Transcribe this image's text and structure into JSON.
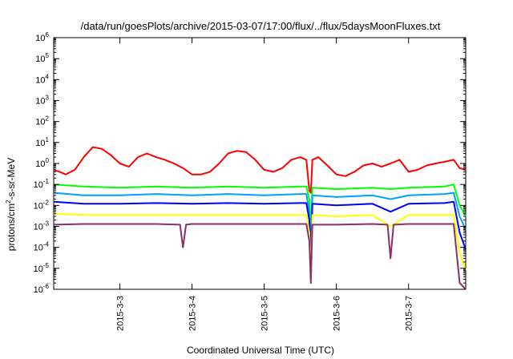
{
  "chart_data": {
    "type": "line",
    "title": "/data/run/goesPlots/archive/2015-03-07/17:00/flux/../flux/5daysMoonFluxes.txt",
    "xlabel": "Coordinated Universal Time (UTC)",
    "ylabel": {
      "base": "protons/cm",
      "sup": "2",
      "rest": "-s-sr-MeV"
    },
    "y_scale": "log",
    "ylim": [
      1e-06,
      1000000.0
    ],
    "xlim": [
      "2015-03-02T02:00",
      "2015-03-07T19:00"
    ],
    "grid": false,
    "legend": "none",
    "y_ticks": [
      {
        "value": 1e-06,
        "base": "10",
        "exp": "-6"
      },
      {
        "value": 1e-05,
        "base": "10",
        "exp": "-5"
      },
      {
        "value": 0.0001,
        "base": "10",
        "exp": "-4"
      },
      {
        "value": 0.001,
        "base": "10",
        "exp": "-3"
      },
      {
        "value": 0.01,
        "base": "10",
        "exp": "-2"
      },
      {
        "value": 0.1,
        "base": "10",
        "exp": "-1"
      },
      {
        "value": 1.0,
        "base": "10",
        "exp": "0"
      },
      {
        "value": 10.0,
        "base": "10",
        "exp": "1"
      },
      {
        "value": 100.0,
        "base": "10",
        "exp": "2"
      },
      {
        "value": 1000.0,
        "base": "10",
        "exp": "3"
      },
      {
        "value": 10000.0,
        "base": "10",
        "exp": "4"
      },
      {
        "value": 100000.0,
        "base": "10",
        "exp": "5"
      },
      {
        "value": 1000000.0,
        "base": "10",
        "exp": "6"
      }
    ],
    "x_ticks": [
      {
        "value": "2015-03-03T00:00",
        "label": "2015-3-3"
      },
      {
        "value": "2015-03-04T00:00",
        "label": "2015-3-4"
      },
      {
        "value": "2015-03-05T00:00",
        "label": "2015-3-5"
      },
      {
        "value": "2015-03-06T00:00",
        "label": "2015-3-6"
      },
      {
        "value": "2015-03-07T00:00",
        "label": "2015-3-7"
      }
    ],
    "series": [
      {
        "color": "#ff0000",
        "x": [
          "2015-03-02T02:00",
          "2015-03-02T04:00",
          "2015-03-02T06:00",
          "2015-03-02T09:00",
          "2015-03-02T12:00",
          "2015-03-02T15:00",
          "2015-03-02T18:00",
          "2015-03-02T21:00",
          "2015-03-03T00:00",
          "2015-03-03T03:00",
          "2015-03-03T06:00",
          "2015-03-03T09:00",
          "2015-03-03T12:00",
          "2015-03-03T15:00",
          "2015-03-03T18:00",
          "2015-03-03T21:00",
          "2015-03-04T00:00",
          "2015-03-04T03:00",
          "2015-03-04T06:00",
          "2015-03-04T09:00",
          "2015-03-04T12:00",
          "2015-03-04T15:00",
          "2015-03-04T18:00",
          "2015-03-04T21:00",
          "2015-03-05T00:00",
          "2015-03-05T03:00",
          "2015-03-05T06:00",
          "2015-03-05T09:00",
          "2015-03-05T12:00",
          "2015-03-05T14:00",
          "2015-03-05T15:00",
          "2015-03-05T15:30",
          "2015-03-05T16:00",
          "2015-03-05T18:00",
          "2015-03-05T21:00",
          "2015-03-06T00:00",
          "2015-03-06T03:00",
          "2015-03-06T06:00",
          "2015-03-06T09:00",
          "2015-03-06T12:00",
          "2015-03-06T15:00",
          "2015-03-06T18:00",
          "2015-03-06T21:00",
          "2015-03-07T00:00",
          "2015-03-07T03:00",
          "2015-03-07T06:00",
          "2015-03-07T09:00",
          "2015-03-07T12:00",
          "2015-03-07T15:00",
          "2015-03-07T17:00",
          "2015-03-07T19:00"
        ],
        "values": [
          0.5,
          0.4,
          0.3,
          0.5,
          2.0,
          6.0,
          5.0,
          2.5,
          1.0,
          0.7,
          2.0,
          3.0,
          2.0,
          1.5,
          1.0,
          0.6,
          0.3,
          0.3,
          0.4,
          1.0,
          3.0,
          4.0,
          3.5,
          1.5,
          0.5,
          0.4,
          0.6,
          1.5,
          2.0,
          1.5,
          0.05,
          0.04,
          1.5,
          2.0,
          0.8,
          0.3,
          0.25,
          0.4,
          0.8,
          1.0,
          0.7,
          1.0,
          1.5,
          0.4,
          0.5,
          0.8,
          1.0,
          1.2,
          1.5,
          0.6,
          0.5
        ]
      },
      {
        "color": "#00ff00",
        "x": [
          "2015-03-02T02:00",
          "2015-03-02T12:00",
          "2015-03-03T00:00",
          "2015-03-03T12:00",
          "2015-03-04T00:00",
          "2015-03-04T12:00",
          "2015-03-05T00:00",
          "2015-03-05T12:00",
          "2015-03-05T14:00",
          "2015-03-05T15:00",
          "2015-03-05T15:30",
          "2015-03-05T16:00",
          "2015-03-06T00:00",
          "2015-03-06T12:00",
          "2015-03-06T18:00",
          "2015-03-07T00:00",
          "2015-03-07T12:00",
          "2015-03-07T15:00",
          "2015-03-07T17:00",
          "2015-03-07T19:00"
        ],
        "values": [
          0.1,
          0.08,
          0.07,
          0.08,
          0.07,
          0.08,
          0.07,
          0.08,
          0.08,
          0.02,
          0.0004,
          0.07,
          0.06,
          0.07,
          0.06,
          0.07,
          0.08,
          0.1,
          0.01,
          0.003
        ]
      },
      {
        "color": "#00a0ff",
        "x": [
          "2015-03-02T02:00",
          "2015-03-02T12:00",
          "2015-03-03T00:00",
          "2015-03-03T12:00",
          "2015-03-04T00:00",
          "2015-03-04T12:00",
          "2015-03-05T00:00",
          "2015-03-05T12:00",
          "2015-03-05T14:00",
          "2015-03-05T15:00",
          "2015-03-05T15:30",
          "2015-03-05T16:00",
          "2015-03-06T00:00",
          "2015-03-06T12:00",
          "2015-03-06T18:00",
          "2015-03-07T00:00",
          "2015-03-07T12:00",
          "2015-03-07T15:00",
          "2015-03-07T17:00",
          "2015-03-07T19:00"
        ],
        "values": [
          0.04,
          0.03,
          0.03,
          0.035,
          0.03,
          0.035,
          0.03,
          0.035,
          0.035,
          0.005,
          0.0001,
          0.03,
          0.025,
          0.03,
          0.02,
          0.03,
          0.035,
          0.04,
          0.003,
          0.0007
        ]
      },
      {
        "color": "#0000ff",
        "x": [
          "2015-03-02T02:00",
          "2015-03-02T12:00",
          "2015-03-03T00:00",
          "2015-03-03T12:00",
          "2015-03-04T00:00",
          "2015-03-04T12:00",
          "2015-03-05T00:00",
          "2015-03-05T12:00",
          "2015-03-05T14:00",
          "2015-03-05T15:00",
          "2015-03-05T15:30",
          "2015-03-05T16:00",
          "2015-03-06T00:00",
          "2015-03-06T12:00",
          "2015-03-06T18:00",
          "2015-03-07T00:00",
          "2015-03-07T12:00",
          "2015-03-07T15:00",
          "2015-03-07T17:00",
          "2015-03-07T19:00"
        ],
        "values": [
          0.015,
          0.012,
          0.012,
          0.013,
          0.012,
          0.013,
          0.012,
          0.013,
          0.013,
          0.002,
          3e-05,
          0.012,
          0.01,
          0.012,
          0.005,
          0.012,
          0.013,
          0.015,
          0.0005,
          8e-05
        ]
      },
      {
        "color": "#ffff00",
        "x": [
          "2015-03-02T02:00",
          "2015-03-02T12:00",
          "2015-03-03T00:00",
          "2015-03-03T12:00",
          "2015-03-04T00:00",
          "2015-03-04T12:00",
          "2015-03-05T00:00",
          "2015-03-05T12:00",
          "2015-03-05T14:00",
          "2015-03-05T15:00",
          "2015-03-05T15:30",
          "2015-03-05T16:00",
          "2015-03-06T00:00",
          "2015-03-06T12:00",
          "2015-03-06T18:00",
          "2015-03-07T00:00",
          "2015-03-07T12:00",
          "2015-03-07T15:00",
          "2015-03-07T17:00",
          "2015-03-07T19:00"
        ],
        "values": [
          0.004,
          0.0035,
          0.0035,
          0.0035,
          0.0035,
          0.0035,
          0.0035,
          0.0035,
          0.0035,
          0.0005,
          5e-06,
          0.0035,
          0.003,
          0.0035,
          0.001,
          0.0035,
          0.0035,
          0.0035,
          5e-05,
          8e-06
        ]
      },
      {
        "color": "#8b2e6b",
        "x": [
          "2015-03-02T02:00",
          "2015-03-02T12:00",
          "2015-03-03T00:00",
          "2015-03-03T12:00",
          "2015-03-03T20:00",
          "2015-03-03T21:00",
          "2015-03-03T22:00",
          "2015-03-04T00:00",
          "2015-03-04T12:00",
          "2015-03-05T00:00",
          "2015-03-05T12:00",
          "2015-03-05T14:00",
          "2015-03-05T15:00",
          "2015-03-05T15:30",
          "2015-03-05T16:00",
          "2015-03-06T00:00",
          "2015-03-06T12:00",
          "2015-03-06T17:00",
          "2015-03-06T18:00",
          "2015-03-06T19:00",
          "2015-03-07T00:00",
          "2015-03-07T12:00",
          "2015-03-07T15:00",
          "2015-03-07T17:00",
          "2015-03-07T19:00"
        ],
        "values": [
          0.0012,
          0.0013,
          0.0013,
          0.0013,
          0.0012,
          0.0001,
          0.0012,
          0.0013,
          0.0013,
          0.0013,
          0.0013,
          0.0013,
          0.0002,
          2e-06,
          0.0012,
          0.0012,
          0.0013,
          0.0012,
          3e-05,
          0.0012,
          0.0013,
          0.0013,
          0.0013,
          2e-06,
          1e-06
        ]
      }
    ]
  }
}
